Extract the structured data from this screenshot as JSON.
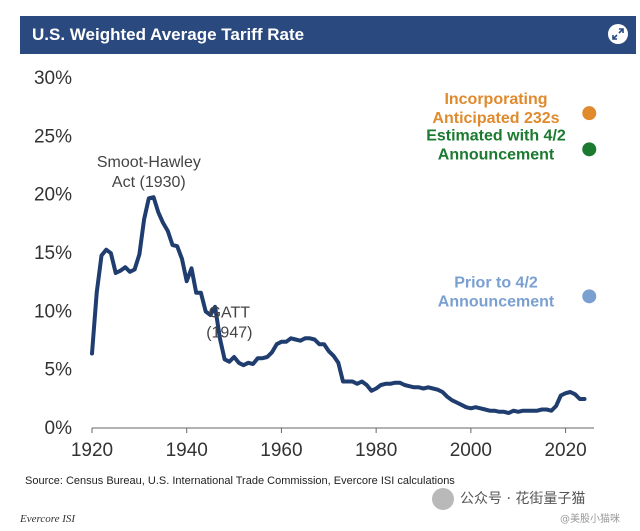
{
  "header": {
    "title": "U.S. Weighted Average Tariff Rate",
    "expand_icon": "expand-arrows-icon"
  },
  "colors": {
    "header_bg": "#2a4a7f",
    "line": "#1f3d6e",
    "orange": "#e08a2e",
    "green": "#1b7a2f",
    "blue": "#7a9fd1"
  },
  "chart_data": {
    "type": "line",
    "title": "U.S. Weighted Average Tariff Rate",
    "xlabel": "",
    "ylabel": "",
    "xlim": [
      1920,
      2026
    ],
    "ylim": [
      0,
      30
    ],
    "x_ticks": [
      "1920",
      "1940",
      "1960",
      "1980",
      "2000",
      "2020"
    ],
    "x_tick_values": [
      1920,
      1940,
      1960,
      1980,
      2000,
      2020
    ],
    "y_ticks": [
      "0%",
      "5%",
      "10%",
      "15%",
      "20%",
      "25%",
      "30%"
    ],
    "y_tick_values": [
      0,
      5,
      10,
      15,
      20,
      25,
      30
    ],
    "grid": false,
    "series": [
      {
        "values": [
          [
            1920,
            6.3
          ],
          [
            1921,
            11.5
          ],
          [
            1922,
            14.7
          ],
          [
            1923,
            15.2
          ],
          [
            1924,
            14.9
          ],
          [
            1925,
            13.2
          ],
          [
            1926,
            13.4
          ],
          [
            1927,
            13.7
          ],
          [
            1928,
            13.3
          ],
          [
            1929,
            13.5
          ],
          [
            1930,
            14.8
          ],
          [
            1931,
            17.8
          ],
          [
            1932,
            19.6
          ],
          [
            1933,
            19.7
          ],
          [
            1934,
            18.4
          ],
          [
            1935,
            17.5
          ],
          [
            1936,
            16.8
          ],
          [
            1937,
            15.6
          ],
          [
            1938,
            15.5
          ],
          [
            1939,
            14.4
          ],
          [
            1940,
            12.5
          ],
          [
            1941,
            13.6
          ],
          [
            1942,
            11.5
          ],
          [
            1943,
            11.5
          ],
          [
            1944,
            9.9
          ],
          [
            1945,
            9.6
          ],
          [
            1946,
            10.3
          ],
          [
            1947,
            7.6
          ],
          [
            1948,
            5.8
          ],
          [
            1949,
            5.6
          ],
          [
            1950,
            6.0
          ],
          [
            1951,
            5.5
          ],
          [
            1952,
            5.3
          ],
          [
            1953,
            5.5
          ],
          [
            1954,
            5.4
          ],
          [
            1955,
            5.9
          ],
          [
            1956,
            5.9
          ],
          [
            1957,
            6.0
          ],
          [
            1958,
            6.4
          ],
          [
            1959,
            7.1
          ],
          [
            1960,
            7.3
          ],
          [
            1961,
            7.3
          ],
          [
            1962,
            7.6
          ],
          [
            1963,
            7.5
          ],
          [
            1964,
            7.4
          ],
          [
            1965,
            7.6
          ],
          [
            1966,
            7.6
          ],
          [
            1967,
            7.5
          ],
          [
            1968,
            7.1
          ],
          [
            1969,
            7.1
          ],
          [
            1970,
            6.5
          ],
          [
            1971,
            6.1
          ],
          [
            1972,
            5.5
          ],
          [
            1973,
            3.9
          ],
          [
            1974,
            3.9
          ],
          [
            1975,
            3.9
          ],
          [
            1976,
            3.7
          ],
          [
            1977,
            3.9
          ],
          [
            1978,
            3.6
          ],
          [
            1979,
            3.1
          ],
          [
            1980,
            3.3
          ],
          [
            1981,
            3.6
          ],
          [
            1982,
            3.7
          ],
          [
            1983,
            3.7
          ],
          [
            1984,
            3.8
          ],
          [
            1985,
            3.8
          ],
          [
            1986,
            3.6
          ],
          [
            1987,
            3.5
          ],
          [
            1988,
            3.4
          ],
          [
            1989,
            3.4
          ],
          [
            1990,
            3.3
          ],
          [
            1991,
            3.4
          ],
          [
            1992,
            3.3
          ],
          [
            1993,
            3.2
          ],
          [
            1994,
            3.0
          ],
          [
            1995,
            2.6
          ],
          [
            1996,
            2.3
          ],
          [
            1997,
            2.1
          ],
          [
            1998,
            1.9
          ],
          [
            1999,
            1.7
          ],
          [
            2000,
            1.6
          ],
          [
            2001,
            1.7
          ],
          [
            2002,
            1.6
          ],
          [
            2003,
            1.5
          ],
          [
            2004,
            1.4
          ],
          [
            2005,
            1.4
          ],
          [
            2006,
            1.3
          ],
          [
            2007,
            1.3
          ],
          [
            2008,
            1.2
          ],
          [
            2009,
            1.4
          ],
          [
            2010,
            1.3
          ],
          [
            2011,
            1.4
          ],
          [
            2012,
            1.4
          ],
          [
            2013,
            1.4
          ],
          [
            2014,
            1.4
          ],
          [
            2015,
            1.5
          ],
          [
            2016,
            1.5
          ],
          [
            2017,
            1.4
          ],
          [
            2018,
            1.8
          ],
          [
            2019,
            2.7
          ],
          [
            2020,
            2.9
          ],
          [
            2021,
            3.0
          ],
          [
            2022,
            2.8
          ],
          [
            2023,
            2.4
          ],
          [
            2024,
            2.4
          ]
        ]
      }
    ],
    "points": [
      {
        "x": 2025,
        "y": 26.9,
        "color": "#e08a2e",
        "label": [
          "Incorporating",
          "Anticipated 232s"
        ]
      },
      {
        "x": 2025,
        "y": 23.8,
        "color": "#1b7a2f",
        "label": [
          "Estimated with 4/2",
          "Announcement"
        ]
      },
      {
        "x": 2025,
        "y": 11.2,
        "color": "#7a9fd1",
        "label": [
          "Prior to 4/2",
          "Announcement"
        ]
      }
    ],
    "annotations": [
      {
        "lines": [
          "Smoot-Hawley",
          "Act (1930)"
        ],
        "x": 1932,
        "y": 22.3
      },
      {
        "lines": [
          "GATT",
          "(1947)"
        ],
        "x": 1949,
        "y": 9.4
      }
    ]
  },
  "footer": {
    "source": "Source: Census Bureau, U.S. International Trade Commission, Evercore ISI calculations",
    "brand": "Evercore ISI"
  },
  "watermark": {
    "text": "公众号 · 花街量子猫",
    "sub": "@美股小猫咪"
  }
}
